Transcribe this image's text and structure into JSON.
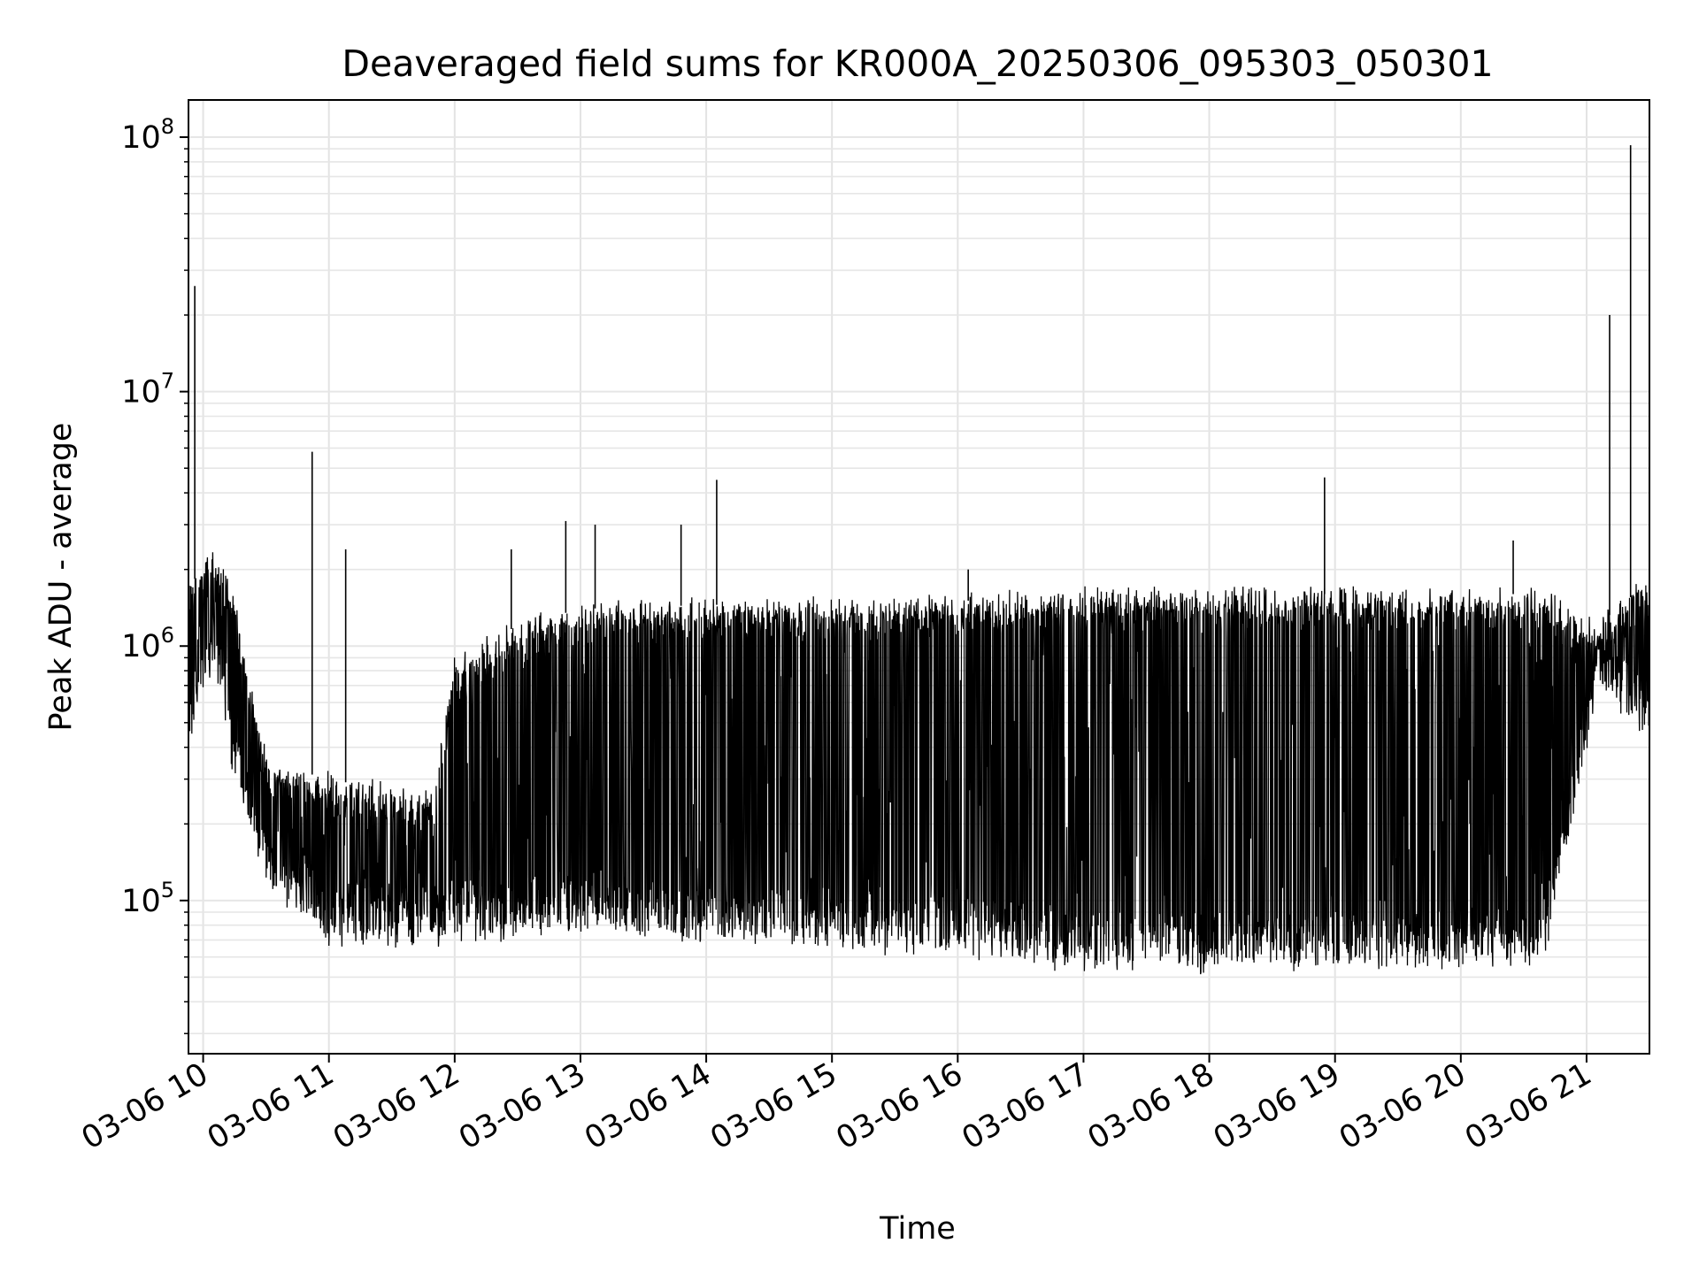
{
  "chart_data": {
    "type": "line",
    "title": "Deaveraged field sums for KR000A_20250306_095303_050301",
    "xlabel": "Time",
    "ylabel": "Peak ADU - average",
    "yscale": "log",
    "ylim": [
      25000,
      140000000
    ],
    "xlim": [
      "2025-03-06 09:53",
      "2025-03-06 21:30"
    ],
    "grid": true,
    "line_color": "#000000",
    "x_ticks": [
      {
        "label": "03-06 10",
        "t": "2025-03-06 10:00"
      },
      {
        "label": "03-06 11",
        "t": "2025-03-06 11:00"
      },
      {
        "label": "03-06 12",
        "t": "2025-03-06 12:00"
      },
      {
        "label": "03-06 13",
        "t": "2025-03-06 13:00"
      },
      {
        "label": "03-06 14",
        "t": "2025-03-06 14:00"
      },
      {
        "label": "03-06 15",
        "t": "2025-03-06 15:00"
      },
      {
        "label": "03-06 16",
        "t": "2025-03-06 16:00"
      },
      {
        "label": "03-06 17",
        "t": "2025-03-06 17:00"
      },
      {
        "label": "03-06 18",
        "t": "2025-03-06 18:00"
      },
      {
        "label": "03-06 19",
        "t": "2025-03-06 19:00"
      },
      {
        "label": "03-06 20",
        "t": "2025-03-06 20:00"
      },
      {
        "label": "03-06 21",
        "t": "2025-03-06 21:00"
      }
    ],
    "y_ticks": [
      {
        "base": "10",
        "exp": "5",
        "value": 100000
      },
      {
        "base": "10",
        "exp": "6",
        "value": 1000000
      },
      {
        "base": "10",
        "exp": "7",
        "value": 10000000
      },
      {
        "base": "10",
        "exp": "8",
        "value": 100000000
      }
    ],
    "envelope": [
      {
        "t": "2025-03-06 09:53",
        "low": 400000,
        "high": 1700000
      },
      {
        "t": "2025-03-06 10:05",
        "low": 900000,
        "high": 2300000
      },
      {
        "t": "2025-03-06 10:15",
        "low": 300000,
        "high": 1500000
      },
      {
        "t": "2025-03-06 10:30",
        "low": 120000,
        "high": 350000
      },
      {
        "t": "2025-03-06 11:00",
        "low": 70000,
        "high": 300000
      },
      {
        "t": "2025-03-06 11:50",
        "low": 70000,
        "high": 250000
      },
      {
        "t": "2025-03-06 12:00",
        "low": 70000,
        "high": 900000
      },
      {
        "t": "2025-03-06 12:30",
        "low": 75000,
        "high": 1200000
      },
      {
        "t": "2025-03-06 13:00",
        "low": 80000,
        "high": 1400000
      },
      {
        "t": "2025-03-06 14:00",
        "low": 70000,
        "high": 1450000
      },
      {
        "t": "2025-03-06 16:00",
        "low": 65000,
        "high": 1500000
      },
      {
        "t": "2025-03-06 17:00",
        "low": 55000,
        "high": 1600000
      },
      {
        "t": "2025-03-06 19:00",
        "low": 55000,
        "high": 1600000
      },
      {
        "t": "2025-03-06 20:40",
        "low": 60000,
        "high": 1600000
      },
      {
        "t": "2025-03-06 20:55",
        "low": 250000,
        "high": 1300000
      },
      {
        "t": "2025-03-06 21:05",
        "low": 700000,
        "high": 1200000
      },
      {
        "t": "2025-03-06 21:30",
        "low": 450000,
        "high": 1800000
      }
    ],
    "spikes": [
      {
        "t": "2025-03-06 09:56",
        "value": 26000000
      },
      {
        "t": "2025-03-06 10:52",
        "value": 5800000
      },
      {
        "t": "2025-03-06 11:08",
        "value": 2400000
      },
      {
        "t": "2025-03-06 12:27",
        "value": 2400000
      },
      {
        "t": "2025-03-06 12:53",
        "value": 3100000
      },
      {
        "t": "2025-03-06 13:07",
        "value": 3000000
      },
      {
        "t": "2025-03-06 13:48",
        "value": 3000000
      },
      {
        "t": "2025-03-06 14:05",
        "value": 4500000
      },
      {
        "t": "2025-03-06 16:05",
        "value": 2000000
      },
      {
        "t": "2025-03-06 18:55",
        "value": 4600000
      },
      {
        "t": "2025-03-06 20:25",
        "value": 2600000
      },
      {
        "t": "2025-03-06 21:11",
        "value": 20000000
      },
      {
        "t": "2025-03-06 21:21",
        "value": 93000000
      }
    ]
  }
}
